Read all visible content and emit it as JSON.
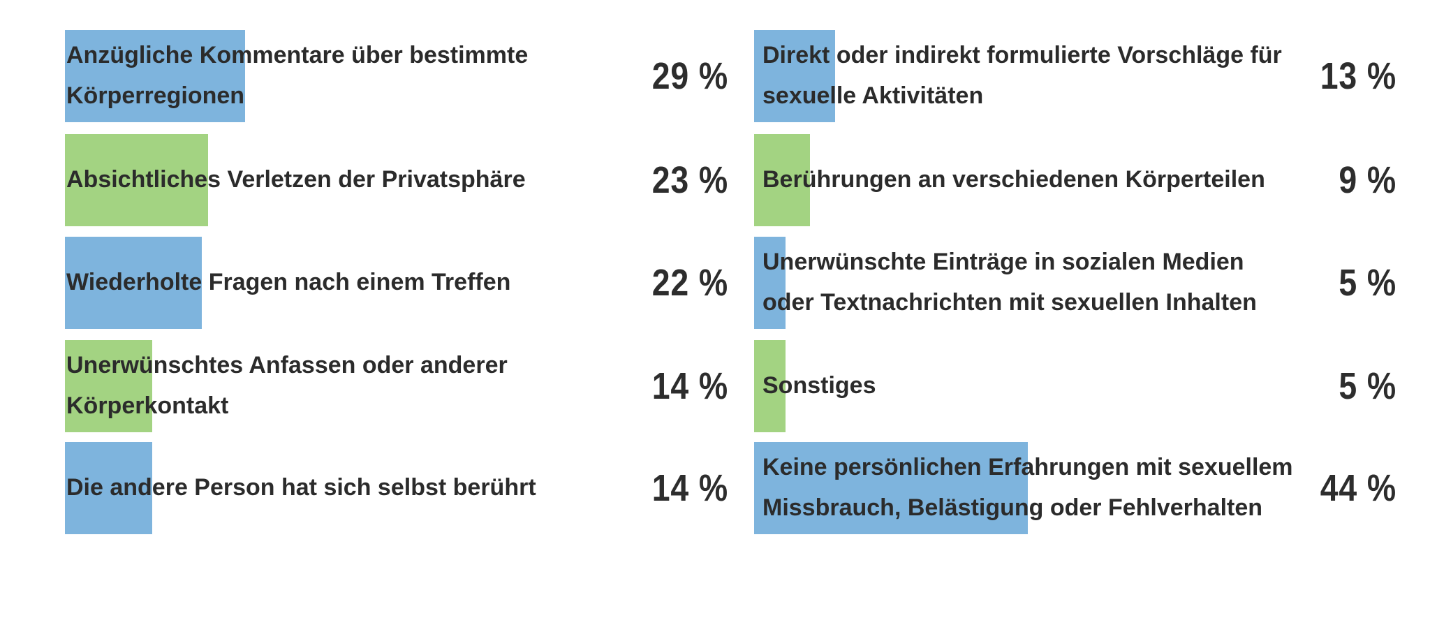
{
  "colors": {
    "blue": "#7eb4dd",
    "green": "#a3d382",
    "text": "#2b2b2b"
  },
  "chart_data": {
    "type": "bar",
    "orientation": "horizontal",
    "unit": "%",
    "xlim": [
      0,
      100
    ],
    "columns": [
      {
        "items": [
          {
            "label": "Anzügliche Kommentare über bestimmte\nKörperregionen",
            "value": 29,
            "value_label": "29 %",
            "color": "blue"
          },
          {
            "label": "Absichtliches Verletzen der Privatsphäre",
            "value": 23,
            "value_label": "23 %",
            "color": "green"
          },
          {
            "label": "Wiederholte Fragen nach einem Treffen",
            "value": 22,
            "value_label": "22 %",
            "color": "blue"
          },
          {
            "label": "Unerwünschtes Anfassen oder anderer\nKörperkontakt",
            "value": 14,
            "value_label": "14 %",
            "color": "green"
          },
          {
            "label": "Die andere Person hat sich selbst berührt",
            "value": 14,
            "value_label": "14 %",
            "color": "blue"
          }
        ]
      },
      {
        "items": [
          {
            "label": "Direkt oder indirekt formulierte Vorschläge für\nsexuelle Aktivitäten",
            "value": 13,
            "value_label": "13 %",
            "color": "blue"
          },
          {
            "label": "Berührungen an verschiedenen Körperteilen",
            "value": 9,
            "value_label": "9 %",
            "color": "green"
          },
          {
            "label": "Unerwünschte Einträge in sozialen Medien\noder Textnachrichten mit sexuellen Inhalten",
            "value": 5,
            "value_label": "5 %",
            "color": "blue"
          },
          {
            "label": "Sonstiges",
            "value": 5,
            "value_label": "5 %",
            "color": "green"
          },
          {
            "label": "Keine persönlichen Erfahrungen mit sexuellem\nMissbrauch, Belästigung oder Fehlverhalten",
            "value": 44,
            "value_label": "44 %",
            "color": "blue"
          }
        ]
      }
    ]
  }
}
